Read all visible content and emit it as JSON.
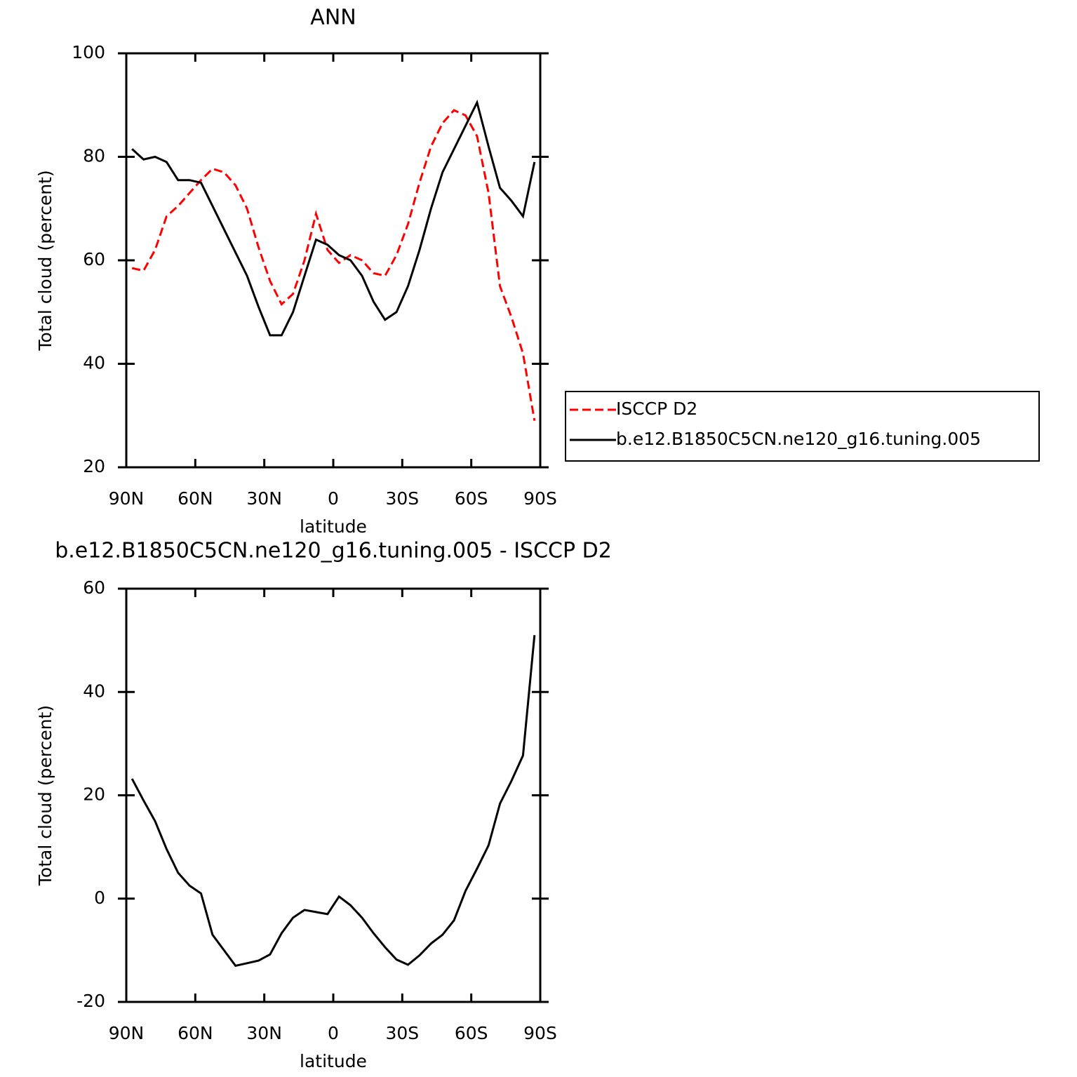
{
  "chart_data": [
    {
      "type": "line",
      "title": "ANN",
      "xlabel": "latitude",
      "ylabel": "Total cloud (percent)",
      "xlim": [
        90,
        -90
      ],
      "ylim": [
        20,
        100
      ],
      "xticks": [
        {
          "value": 90,
          "label": "90N"
        },
        {
          "value": 60,
          "label": "60N"
        },
        {
          "value": 30,
          "label": "30N"
        },
        0,
        {
          "value": -30,
          "label": "30S"
        },
        {
          "value": -60,
          "label": "60S"
        },
        {
          "value": -90,
          "label": "90S"
        }
      ],
      "yticks": [
        20,
        40,
        60,
        80,
        100
      ],
      "legend": "right",
      "x": [
        87.5,
        82.5,
        77.5,
        72.5,
        67.5,
        62.5,
        57.5,
        52.5,
        47.5,
        42.5,
        37.5,
        32.5,
        27.5,
        22.5,
        17.5,
        12.5,
        7.5,
        2.5,
        -2.5,
        -7.5,
        -12.5,
        -17.5,
        -22.5,
        -27.5,
        -32.5,
        -37.5,
        -42.5,
        -47.5,
        -52.5,
        -57.5,
        -62.5,
        -67.5,
        -72.5,
        -77.5,
        -82.5,
        -87.5
      ],
      "series": [
        {
          "name": "ISCCP D2",
          "color": "#ff0000",
          "linestyle": "dashed",
          "values": [
            58.5,
            58,
            62,
            68.5,
            70.5,
            73,
            75.5,
            77.7,
            77,
            74.5,
            70,
            62.5,
            56,
            51.5,
            53.5,
            60,
            69,
            62,
            59.5,
            61,
            60,
            57.5,
            57,
            61,
            67,
            75,
            82,
            86.5,
            89,
            88,
            84,
            73,
            55,
            49,
            42,
            29
          ]
        },
        {
          "name": "b.e12.B1850C5CN.ne120_g16.tuning.005",
          "color": "#000000",
          "linestyle": "solid",
          "values": [
            81.5,
            79.5,
            80,
            79,
            75.5,
            75.5,
            75,
            70.5,
            66,
            61.5,
            57,
            51,
            45.5,
            45.5,
            50,
            57,
            64,
            63,
            61,
            60,
            57,
            52,
            48.5,
            50,
            55,
            62,
            70,
            77,
            81.5,
            86,
            90.5,
            82,
            74,
            71.5,
            68.5,
            79
          ]
        }
      ]
    },
    {
      "type": "line",
      "title": "b.e12.B1850C5CN.ne120_g16.tuning.005 - ISCCP D2",
      "xlabel": "latitude",
      "ylabel": "Total cloud (percent)",
      "xlim": [
        90,
        -90
      ],
      "ylim": [
        -20,
        60
      ],
      "xticks": [
        {
          "value": 90,
          "label": "90N"
        },
        {
          "value": 60,
          "label": "60N"
        },
        {
          "value": 30,
          "label": "30N"
        },
        0,
        {
          "value": -30,
          "label": "30S"
        },
        {
          "value": -60,
          "label": "60S"
        },
        {
          "value": -90,
          "label": "90S"
        }
      ],
      "yticks": [
        -20,
        0,
        20,
        40,
        60
      ],
      "x": [
        87.5,
        82.5,
        77.5,
        72.5,
        67.5,
        62.5,
        57.5,
        52.5,
        47.5,
        42.5,
        37.5,
        32.5,
        27.5,
        22.5,
        17.5,
        12.5,
        7.5,
        2.5,
        -2.5,
        -7.5,
        -12.5,
        -17.5,
        -22.5,
        -27.5,
        -32.5,
        -37.5,
        -42.5,
        -47.5,
        -52.5,
        -57.5,
        -62.5,
        -67.5,
        -72.5,
        -77.5,
        -82.5,
        -87.5
      ],
      "series": [
        {
          "color": "#000000",
          "linestyle": "solid",
          "values": [
            23.2,
            19,
            15,
            9.6,
            5,
            2.5,
            1,
            -7,
            -10,
            -13,
            -12.5,
            -12,
            -10.8,
            -6.7,
            -3.7,
            -2.2,
            -2.6,
            -3,
            0.4,
            -1.3,
            -3.7,
            -6.7,
            -9.4,
            -11.8,
            -12.8,
            -11,
            -8.7,
            -7,
            -4.2,
            1.5,
            5.8,
            10.3,
            18.4,
            22.8,
            27.7,
            51
          ]
        }
      ]
    }
  ]
}
